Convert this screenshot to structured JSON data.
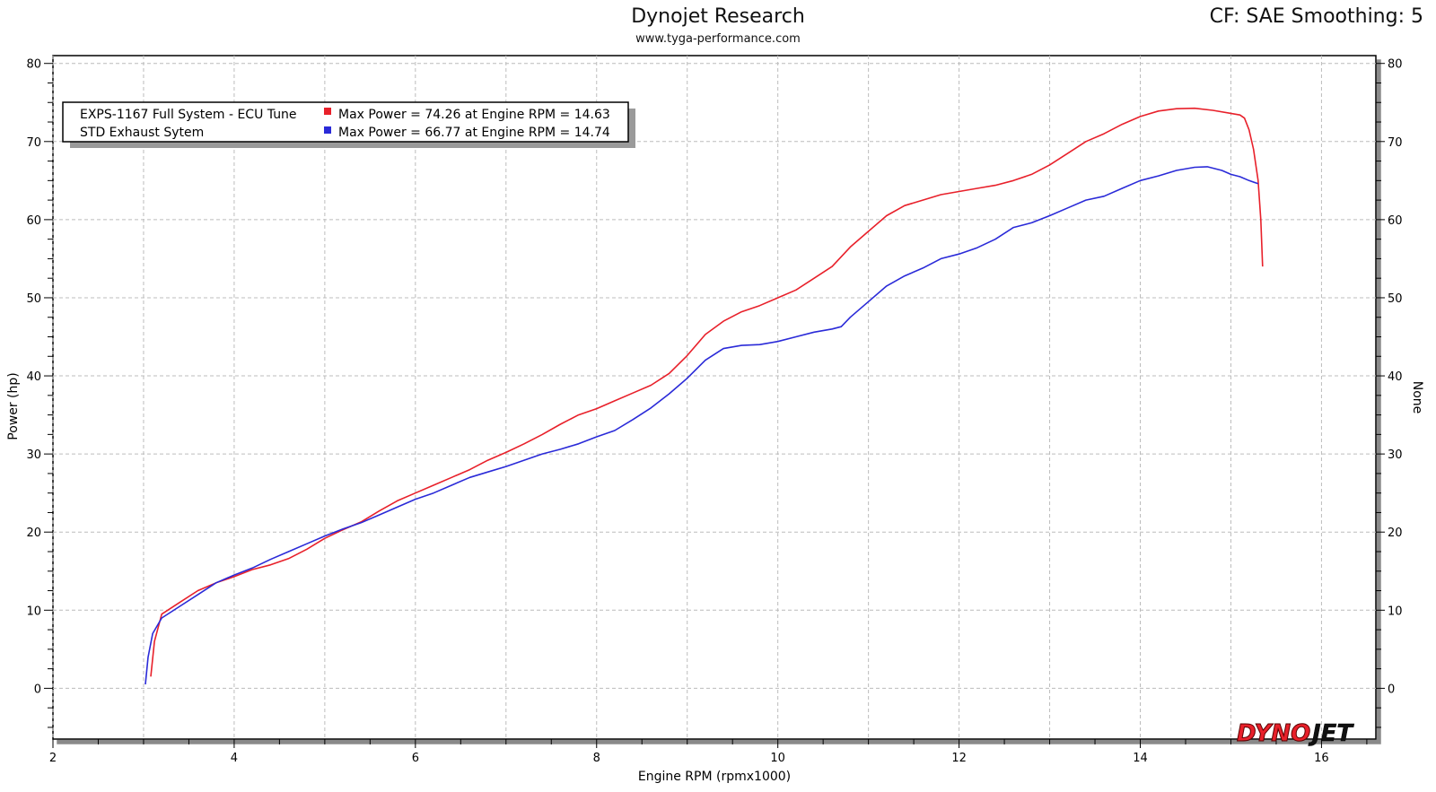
{
  "header": {
    "title": "Dynojet Research",
    "subtitle": "www.tyga-performance.com",
    "cf_label": "CF: SAE Smoothing: 5"
  },
  "chart_data": {
    "type": "line",
    "xlabel": "Engine RPM (rpmx1000)",
    "ylabel": "Power (hp)",
    "y2label": "None",
    "xlim": [
      2,
      16.6
    ],
    "ylim": [
      -6.5,
      81
    ],
    "xticks": [
      2,
      4,
      6,
      8,
      10,
      12,
      14,
      16
    ],
    "yticks": [
      0,
      10,
      20,
      30,
      40,
      50,
      60,
      70,
      80
    ],
    "grid": true,
    "legend_position": "top-left",
    "legend": [
      {
        "name": "EXPS-1167 Full System - ECU Tune",
        "stat": "Max Power = 74.26 at Engine RPM = 14.63",
        "color": "#e8202a"
      },
      {
        "name": "STD Exhaust Sytem",
        "stat": "Max Power = 66.77 at Engine RPM = 14.74",
        "color": "#2a2ad8"
      }
    ],
    "series": [
      {
        "name": "EXPS-1167 Full System - ECU Tune",
        "color": "#e8202a",
        "x": [
          3.08,
          3.12,
          3.2,
          3.4,
          3.6,
          3.8,
          4.0,
          4.2,
          4.4,
          4.6,
          4.8,
          5.0,
          5.2,
          5.4,
          5.6,
          5.8,
          6.0,
          6.2,
          6.4,
          6.6,
          6.8,
          7.0,
          7.2,
          7.4,
          7.6,
          7.8,
          8.0,
          8.2,
          8.4,
          8.6,
          8.8,
          9.0,
          9.2,
          9.4,
          9.6,
          9.8,
          10.0,
          10.2,
          10.4,
          10.6,
          10.8,
          11.0,
          11.2,
          11.4,
          11.6,
          11.8,
          12.0,
          12.2,
          12.4,
          12.6,
          12.8,
          13.0,
          13.2,
          13.4,
          13.6,
          13.8,
          14.0,
          14.2,
          14.4,
          14.6,
          14.8,
          15.0,
          15.1,
          15.15,
          15.2,
          15.25,
          15.3,
          15.33,
          15.35
        ],
        "values": [
          1.5,
          6.0,
          9.5,
          11.0,
          12.5,
          13.5,
          14.3,
          15.2,
          15.8,
          16.6,
          17.8,
          19.2,
          20.3,
          21.3,
          22.7,
          24.0,
          25.0,
          26.0,
          27.0,
          28.0,
          29.2,
          30.2,
          31.3,
          32.5,
          33.8,
          35.0,
          35.8,
          36.8,
          37.8,
          38.8,
          40.3,
          42.6,
          45.3,
          47.0,
          48.2,
          49.0,
          50.0,
          51.0,
          52.5,
          54.0,
          56.5,
          58.5,
          60.5,
          61.8,
          62.5,
          63.2,
          63.6,
          64.0,
          64.4,
          65.0,
          65.8,
          67.0,
          68.5,
          70.0,
          71.0,
          72.2,
          73.2,
          73.9,
          74.2,
          74.26,
          74.0,
          73.6,
          73.4,
          73.0,
          71.5,
          69.0,
          65.0,
          60.0,
          54.0
        ]
      },
      {
        "name": "STD Exhaust Sytem",
        "color": "#2a2ad8",
        "x": [
          3.02,
          3.05,
          3.1,
          3.2,
          3.4,
          3.6,
          3.8,
          4.0,
          4.2,
          4.4,
          4.6,
          4.8,
          5.0,
          5.2,
          5.4,
          5.6,
          5.8,
          6.0,
          6.2,
          6.4,
          6.6,
          6.8,
          7.0,
          7.2,
          7.4,
          7.6,
          7.8,
          8.0,
          8.2,
          8.4,
          8.6,
          8.8,
          9.0,
          9.2,
          9.4,
          9.6,
          9.8,
          10.0,
          10.2,
          10.4,
          10.6,
          10.7,
          10.8,
          11.0,
          11.2,
          11.4,
          11.6,
          11.8,
          12.0,
          12.2,
          12.4,
          12.6,
          12.8,
          13.0,
          13.2,
          13.4,
          13.6,
          13.8,
          14.0,
          14.2,
          14.4,
          14.6,
          14.74,
          14.9,
          15.0,
          15.1,
          15.2,
          15.3
        ],
        "values": [
          0.5,
          4.0,
          7.0,
          9.0,
          10.5,
          12.0,
          13.5,
          14.5,
          15.4,
          16.5,
          17.5,
          18.5,
          19.5,
          20.4,
          21.2,
          22.2,
          23.2,
          24.2,
          25.0,
          26.0,
          27.0,
          27.7,
          28.4,
          29.2,
          30.0,
          30.6,
          31.3,
          32.2,
          33.0,
          34.4,
          35.9,
          37.7,
          39.7,
          42.0,
          43.5,
          43.9,
          44.0,
          44.4,
          45.0,
          45.6,
          46.0,
          46.3,
          47.5,
          49.5,
          51.5,
          52.8,
          53.8,
          55.0,
          55.6,
          56.4,
          57.5,
          59.0,
          59.6,
          60.5,
          61.5,
          62.5,
          63.0,
          64.0,
          65.0,
          65.6,
          66.3,
          66.7,
          66.77,
          66.3,
          65.8,
          65.5,
          65.0,
          64.6
        ]
      }
    ]
  }
}
